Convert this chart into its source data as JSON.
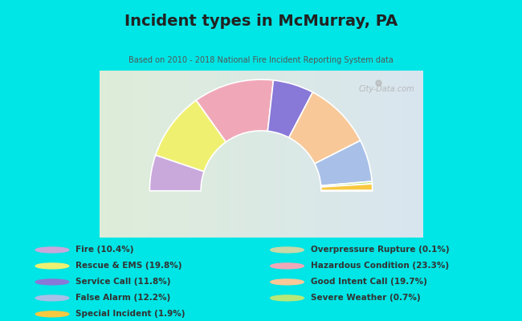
{
  "title": "Incident types in McMurray, PA",
  "subtitle": "Based on 2010 - 2018 National Fire Incident Reporting System data",
  "background_outer": "#00e5e5",
  "chart_bg_left": "#dde8d8",
  "chart_bg_right": "#d8e8f0",
  "watermark": "City-Data.com",
  "segments_ordered": [
    {
      "label": "Fire",
      "pct": 10.4,
      "color": "#c9a8dc"
    },
    {
      "label": "Rescue & EMS",
      "pct": 19.8,
      "color": "#f0f070"
    },
    {
      "label": "Hazardous Condition",
      "pct": 23.3,
      "color": "#f0a8b8"
    },
    {
      "label": "Service Call",
      "pct": 11.8,
      "color": "#8878d8"
    },
    {
      "label": "Good Intent Call",
      "pct": 19.7,
      "color": "#f8c898"
    },
    {
      "label": "False Alarm",
      "pct": 12.2,
      "color": "#a8c0e8"
    },
    {
      "label": "Severe Weather",
      "pct": 0.7,
      "color": "#b8e878"
    },
    {
      "label": "Special Incident",
      "pct": 1.9,
      "color": "#f8c840"
    },
    {
      "label": "Overpressure Rupture",
      "pct": 0.1,
      "color": "#c8d8a8"
    }
  ],
  "legend_left": [
    {
      "label": "Fire (10.4%)",
      "color": "#c9a8dc"
    },
    {
      "label": "Rescue & EMS (19.8%)",
      "color": "#f0f070"
    },
    {
      "label": "Service Call (11.8%)",
      "color": "#8878d8"
    },
    {
      "label": "False Alarm (12.2%)",
      "color": "#a8c0e8"
    },
    {
      "label": "Special Incident (1.9%)",
      "color": "#f8c840"
    }
  ],
  "legend_right": [
    {
      "label": "Overpressure Rupture (0.1%)",
      "color": "#c8d8a8"
    },
    {
      "label": "Hazardous Condition (23.3%)",
      "color": "#f0a8b8"
    },
    {
      "label": "Good Intent Call (19.7%)",
      "color": "#f8c898"
    },
    {
      "label": "Severe Weather (0.7%)",
      "color": "#b8e878"
    }
  ]
}
